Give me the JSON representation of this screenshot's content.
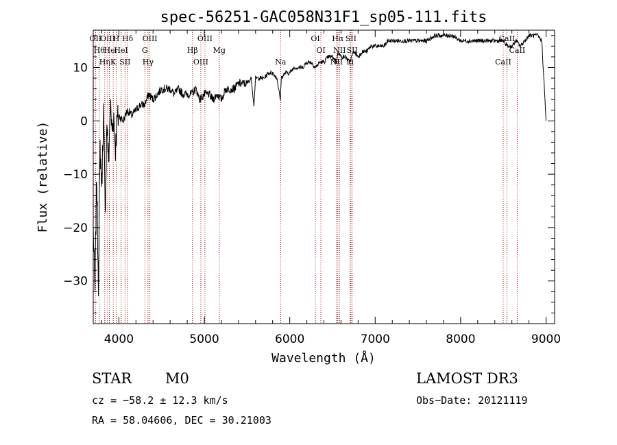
{
  "chart_data": {
    "type": "line",
    "title": "spec-56251-GAC058N31F1_sp05-111.fits",
    "xlabel": "Wavelength (Å)",
    "ylabel": "Flux (relative)",
    "xlim": [
      3700,
      9100
    ],
    "ylim": [
      -38,
      17
    ],
    "x_ticks": [
      4000,
      5000,
      6000,
      7000,
      8000,
      9000
    ],
    "y_ticks": [
      10,
      0,
      -10,
      -20,
      -30
    ],
    "x_tick_labels": [
      "4000",
      "5000",
      "6000",
      "7000",
      "8000",
      "9000"
    ],
    "y_tick_labels": [
      "10",
      "0",
      "−10",
      "−20",
      "−30"
    ],
    "series": [
      {
        "name": "spectrum",
        "x": [
          3700,
          3720,
          3740,
          3760,
          3780,
          3800,
          3820,
          3840,
          3860,
          3880,
          3900,
          3920,
          3940,
          3960,
          3980,
          4000,
          4050,
          4100,
          4150,
          4200,
          4250,
          4300,
          4350,
          4400,
          4450,
          4500,
          4550,
          4600,
          4650,
          4700,
          4750,
          4800,
          4850,
          4900,
          4950,
          5000,
          5050,
          5100,
          5150,
          5200,
          5250,
          5300,
          5350,
          5400,
          5450,
          5500,
          5550,
          5580,
          5600,
          5650,
          5700,
          5750,
          5800,
          5850,
          5890,
          5900,
          5950,
          6000,
          6050,
          6100,
          6150,
          6200,
          6250,
          6300,
          6350,
          6400,
          6450,
          6500,
          6550,
          6563,
          6600,
          6650,
          6700,
          6750,
          6800,
          6850,
          6900,
          6950,
          7000,
          7050,
          7100,
          7150,
          7200,
          7300,
          7400,
          7500,
          7600,
          7700,
          7800,
          7900,
          8000,
          8100,
          8200,
          8300,
          8400,
          8500,
          8550,
          8600,
          8650,
          8700,
          8750,
          8800,
          8850,
          8900,
          8950,
          9000
        ],
        "y": [
          -20,
          -32,
          -10,
          -30,
          -5,
          -12,
          2,
          -18,
          0,
          -8,
          3,
          -2,
          1,
          -5,
          0,
          1,
          0,
          2,
          1,
          2,
          3,
          3,
          5,
          4,
          5,
          6,
          6,
          6,
          5,
          6,
          5,
          5,
          5,
          6,
          4,
          5,
          5,
          4,
          5,
          4,
          6,
          6,
          6,
          7,
          7,
          7,
          8,
          3,
          8,
          8,
          8,
          9,
          9,
          8,
          4,
          8,
          9,
          9,
          10,
          10,
          10,
          11,
          11,
          10,
          11,
          11,
          12,
          12,
          11,
          13,
          12,
          12,
          11,
          13,
          12,
          13,
          13,
          14,
          14,
          14,
          14,
          15,
          15,
          15,
          15,
          15,
          15,
          16,
          16,
          16,
          15,
          15,
          15,
          15,
          15,
          15,
          14,
          14,
          15,
          14,
          15,
          16,
          16,
          16,
          15,
          0
        ]
      }
    ],
    "spectral_lines": [
      {
        "x": 3727,
        "labels": [
          "OII"
        ]
      },
      {
        "x": 3770,
        "labels": [
          "Hθ"
        ]
      },
      {
        "x": 3835,
        "labels": [
          "Hη"
        ]
      },
      {
        "x": 3869,
        "labels": [
          "OIII"
        ]
      },
      {
        "x": 3889,
        "labels": [
          "He"
        ]
      },
      {
        "x": 3934,
        "labels": [
          "K"
        ]
      },
      {
        "x": 3969,
        "labels": [
          "H"
        ]
      },
      {
        "x": 4026,
        "labels": [
          "HeI"
        ]
      },
      {
        "x": 4072,
        "labels": [
          "SII"
        ]
      },
      {
        "x": 4102,
        "labels": [
          "Hδ"
        ]
      },
      {
        "x": 4305,
        "labels": [
          "G"
        ]
      },
      {
        "x": 4341,
        "labels": [
          "Hγ"
        ]
      },
      {
        "x": 4363,
        "labels": [
          "OIII"
        ]
      },
      {
        "x": 4861,
        "labels": [
          "Hβ"
        ]
      },
      {
        "x": 4959,
        "labels": [
          "OIII"
        ]
      },
      {
        "x": 5007,
        "labels": [
          "OIII"
        ]
      },
      {
        "x": 5175,
        "labels": [
          "Mg"
        ]
      },
      {
        "x": 5893,
        "labels": [
          "Na"
        ]
      },
      {
        "x": 6300,
        "labels": [
          "OI"
        ]
      },
      {
        "x": 6364,
        "labels": [
          "OI"
        ]
      },
      {
        "x": 6548,
        "labels": [
          "NII"
        ]
      },
      {
        "x": 6563,
        "labels": [
          "Hα"
        ]
      },
      {
        "x": 6583,
        "labels": [
          "NII"
        ]
      },
      {
        "x": 6707,
        "labels": [
          "Li"
        ]
      },
      {
        "x": 6716,
        "labels": [
          "SII"
        ]
      },
      {
        "x": 6731,
        "labels": [
          "SII"
        ]
      },
      {
        "x": 8498,
        "labels": [
          "CaII"
        ]
      },
      {
        "x": 8542,
        "labels": [
          "CaII"
        ]
      },
      {
        "x": 8662,
        "labels": [
          "CaII"
        ]
      }
    ],
    "line_color": "#000000",
    "marker_color": "#b00000"
  },
  "info": {
    "class_label": "STAR",
    "subclass_label": "M0",
    "survey": "LAMOST DR3",
    "cz": "cz = −58.2 ± 12.3 km/s",
    "obs_date": "Obs−Date: 20121119",
    "radec": "RA =  58.04606, DEC =  30.21003"
  }
}
